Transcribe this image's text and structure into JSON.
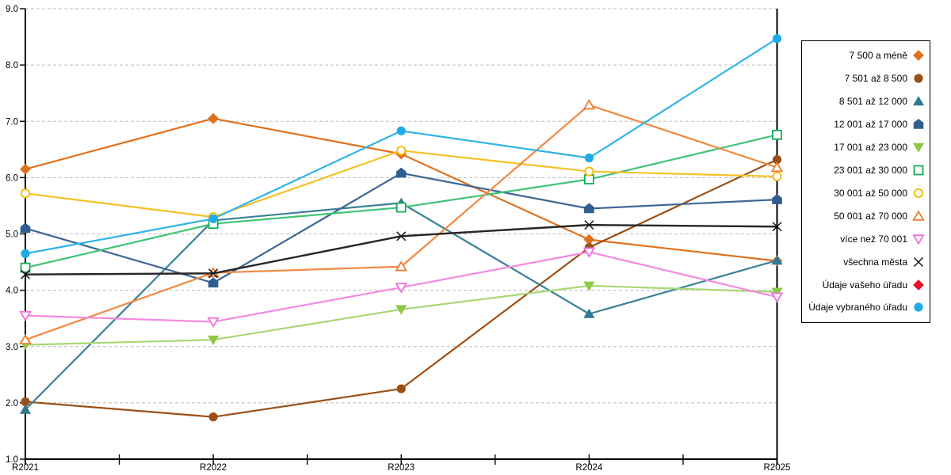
{
  "chart_data": {
    "type": "line",
    "title": "",
    "xlabel": "",
    "ylabel": "",
    "x_labels": [
      "R2021",
      "R2022",
      "R2023",
      "R2024",
      "R2025"
    ],
    "y_tick_labels": [
      "9.0",
      "8.0",
      "7.0",
      "6.0",
      "5.0",
      "4.0",
      "3.0",
      "2.0",
      "1.0"
    ],
    "ylim": [
      1.0,
      9.0
    ],
    "ytick_step": 1.0,
    "grid": "horizontal-dashed",
    "legend_position": "right",
    "series": [
      {
        "name": "7 500 a méně",
        "marker": "diamond",
        "style": "filled",
        "color": "#E0711C",
        "line_color": "#E0711C",
        "values": [
          6.15,
          7.05,
          6.42,
          4.9,
          4.52
        ]
      },
      {
        "name": "7 501 až 8 500",
        "marker": "circle",
        "style": "filled",
        "color": "#9A5017",
        "line_color": "#9A5017",
        "values": [
          2.02,
          1.75,
          2.25,
          4.76,
          6.32
        ]
      },
      {
        "name": "8 501 až 12 000",
        "marker": "triangle-up",
        "style": "filled",
        "color": "#2E7B91",
        "line_color": "#3A8197",
        "values": [
          1.88,
          5.24,
          5.55,
          3.58,
          4.53
        ]
      },
      {
        "name": "12 001 až 17 000",
        "marker": "pentagon",
        "style": "filled",
        "color": "#315D90",
        "line_color": "#3D6694",
        "values": [
          5.1,
          4.13,
          6.08,
          5.45,
          5.61
        ]
      },
      {
        "name": "17 001 až 23 000",
        "marker": "triangle-down",
        "style": "filled",
        "color": "#8FC747",
        "line_color": "#A6D774",
        "values": [
          3.03,
          3.12,
          3.66,
          4.08,
          3.97
        ]
      },
      {
        "name": "23 001 až 30 000",
        "marker": "square",
        "style": "open",
        "color": "#14AF5A",
        "line_color": "#3FC474",
        "values": [
          4.4,
          5.18,
          5.47,
          5.97,
          6.76
        ]
      },
      {
        "name": "30 001 až 50 000",
        "marker": "circle",
        "style": "open",
        "color": "#F5B800",
        "line_color": "#F7C125",
        "values": [
          5.72,
          5.3,
          6.48,
          6.11,
          6.02
        ]
      },
      {
        "name": "50 001 až 70 000",
        "marker": "triangle-up",
        "style": "open",
        "color": "#ED7D31",
        "line_color": "#EF8A42",
        "values": [
          3.12,
          4.31,
          4.42,
          7.29,
          6.18
        ]
      },
      {
        "name": "více než 70 001",
        "marker": "triangle-down",
        "style": "open",
        "color": "#EF6FD8",
        "line_color": "#F389E2",
        "values": [
          3.55,
          3.44,
          4.05,
          4.68,
          3.88
        ]
      },
      {
        "name": "všechna města",
        "marker": "x",
        "style": "open",
        "color": "#141414",
        "line_color": "#262626",
        "values": [
          4.28,
          4.3,
          4.96,
          5.16,
          5.13
        ]
      },
      {
        "name": "Údaje vašeho úřadu",
        "marker": "diamond",
        "style": "filled",
        "color": "#E8112D",
        "line_color": "#E8112D",
        "values": [
          null,
          null,
          null,
          null,
          null
        ]
      },
      {
        "name": "Údaje vybraného úřadu",
        "marker": "circle",
        "style": "filled",
        "color": "#1FACE6",
        "line_color": "#30B4E9",
        "values": [
          4.65,
          5.27,
          6.83,
          6.35,
          8.47
        ]
      }
    ]
  }
}
